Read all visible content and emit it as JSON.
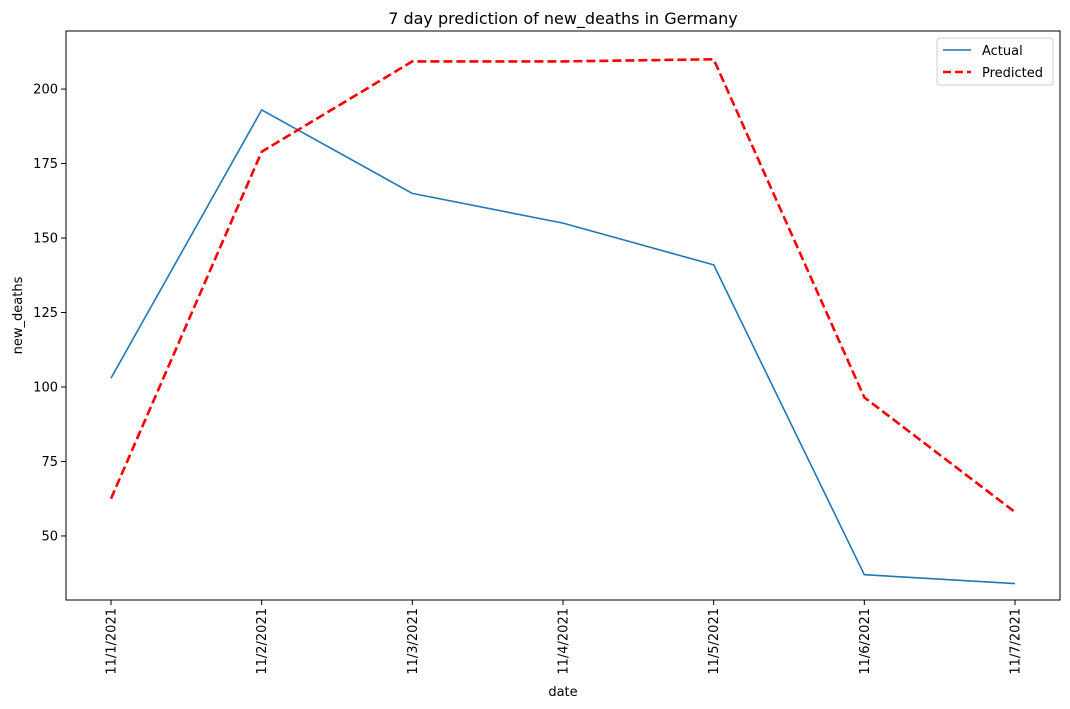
{
  "chart_data": {
    "type": "line",
    "title": "7 day prediction of new_deaths in Germany",
    "xlabel": "date",
    "ylabel": "new_deaths",
    "categories": [
      "11/1/2021",
      "11/2/2021",
      "11/3/2021",
      "11/4/2021",
      "11/5/2021",
      "11/6/2021",
      "11/7/2021"
    ],
    "yticks": [
      50,
      75,
      100,
      125,
      150,
      175,
      200
    ],
    "ylim": [
      28.5,
      219.5
    ],
    "grid": false,
    "legend_position": "top-right",
    "series": [
      {
        "name": "Actual",
        "values": [
          103,
          193,
          165,
          155,
          141,
          37,
          34
        ],
        "color": "#1f77b4",
        "style": "solid"
      },
      {
        "name": "Predicted",
        "values": [
          62.5,
          179,
          209.3,
          209.3,
          210,
          96.5,
          58
        ],
        "color": "#ff0000",
        "style": "dashed"
      }
    ]
  }
}
